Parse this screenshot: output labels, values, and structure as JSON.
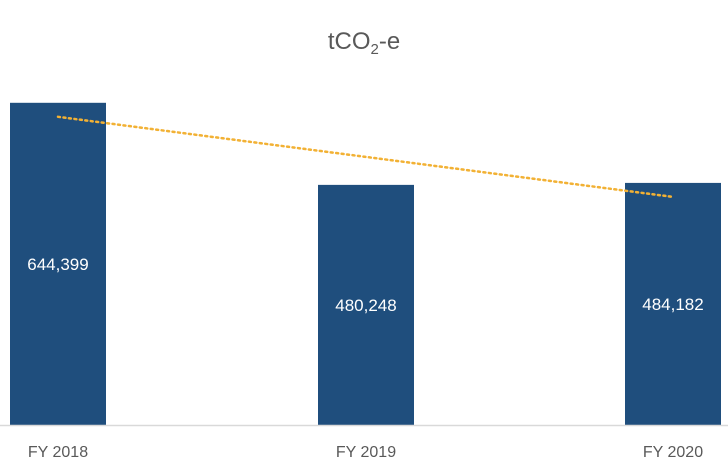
{
  "chart_data": {
    "type": "bar",
    "title": {
      "main": "tCO",
      "subscript": "2",
      "suffix": "-e"
    },
    "categories": [
      "FY 2018",
      "FY 2019",
      "FY 2020"
    ],
    "values": [
      644399,
      480248,
      484182
    ],
    "data_labels": [
      "644,399",
      "480,248",
      "484,182"
    ],
    "ylim": [
      0,
      680000
    ],
    "trendline": {
      "type": "linear",
      "style": "dotted"
    },
    "grid": false,
    "colors": {
      "bar": "#1F4E7D",
      "trendline": "#F2B134",
      "axis": "#D9D9D9",
      "tick_text": "#595959",
      "label_text": "#FFFFFF"
    }
  }
}
